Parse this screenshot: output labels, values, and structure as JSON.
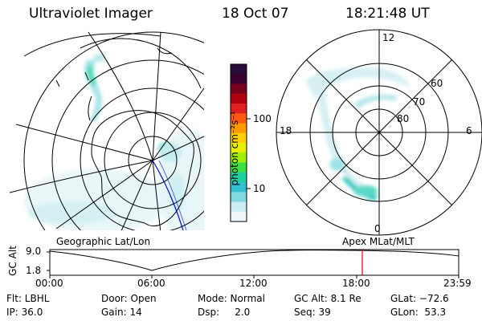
{
  "header": {
    "instrument": "Ultraviolet Imager",
    "date": "18 Oct 07",
    "time": "18:21:48 UT"
  },
  "left_panel": {
    "label": "Geographic Lat/Lon"
  },
  "right_panel": {
    "label": "Apex  MLat/MLT",
    "mlt_labels": {
      "top": "12",
      "left": "18",
      "right": "6",
      "bottom": "0"
    },
    "lat_labels": [
      "60",
      "70",
      "80"
    ]
  },
  "colorbar": {
    "label": "photon cm⁻²s⁻¹",
    "ticks": [
      "100",
      "10"
    ],
    "colors": [
      "#2b0a3c",
      "#3a0030",
      "#7a0020",
      "#b00010",
      "#e02020",
      "#ff5a10",
      "#ff9a00",
      "#ffd000",
      "#e8f000",
      "#9ef000",
      "#3ce040",
      "#20d0a0",
      "#30c0d0",
      "#80d8e0",
      "#c8ecf0",
      "#eef8fa"
    ]
  },
  "altitude_plot": {
    "ylabel": "GC Alt",
    "y_ticks": [
      "9.0",
      "1.8"
    ],
    "x_ticks": [
      "00:00",
      "06:00",
      "12:00",
      "18:00",
      "23:59"
    ],
    "marker_time": "18:21"
  },
  "footer": {
    "row1": {
      "flt": "Flt: LBHL",
      "door": "Door: Open",
      "mode": "Mode: Normal",
      "gcalt": "GC Alt: 8.1 Re",
      "glat": "GLat: −72.6"
    },
    "row2": {
      "ip": "IP: 36.0",
      "gain": "Gain: 14",
      "dsp": "Dsp:     2.0",
      "seq": "Seq: 39",
      "glon": "GLon:  53.3"
    }
  },
  "colors": {
    "marker": "#e00000",
    "orbit_track": "#0000c0",
    "grid": "#000000"
  }
}
